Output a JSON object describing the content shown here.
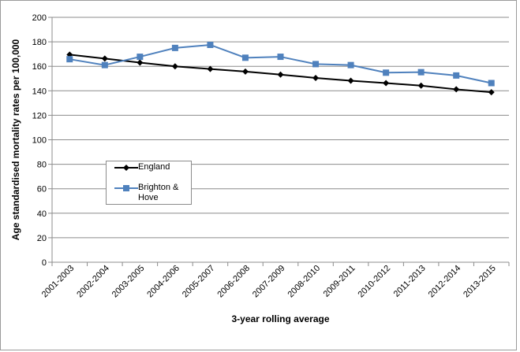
{
  "chart_data": {
    "type": "line",
    "title": "",
    "xlabel": "3-year rolling average",
    "ylabel": "Age standardised mortality rates per 100,000",
    "ylim": [
      0,
      200
    ],
    "yticks": [
      "0",
      "20",
      "40",
      "60",
      "80",
      "100",
      "120",
      "140",
      "160",
      "180",
      "200"
    ],
    "grid": "horizontal",
    "legend_position": "left-middle",
    "categories": [
      "2001-2003",
      "2002-2004",
      "2003-2005",
      "2004-2006",
      "2005-2007",
      "2006-2008",
      "2007-2009",
      "2008-2010",
      "2009-2011",
      "2010-2012",
      "2011-2013",
      "2012-2014",
      "2013-2015"
    ],
    "series": [
      {
        "name": "England",
        "color": "#000000",
        "marker": "diamond",
        "values": [
          169.5,
          166.3,
          163.0,
          160.0,
          157.8,
          155.7,
          153.2,
          150.5,
          148.2,
          146.3,
          144.2,
          141.2,
          138.8
        ]
      },
      {
        "name": "Brighton & Hove",
        "color": "#4f81bd",
        "marker": "square",
        "values": [
          165.8,
          161.0,
          167.8,
          175.0,
          177.5,
          167.0,
          167.8,
          161.8,
          161.0,
          154.8,
          155.2,
          152.5,
          146.3
        ]
      }
    ]
  }
}
